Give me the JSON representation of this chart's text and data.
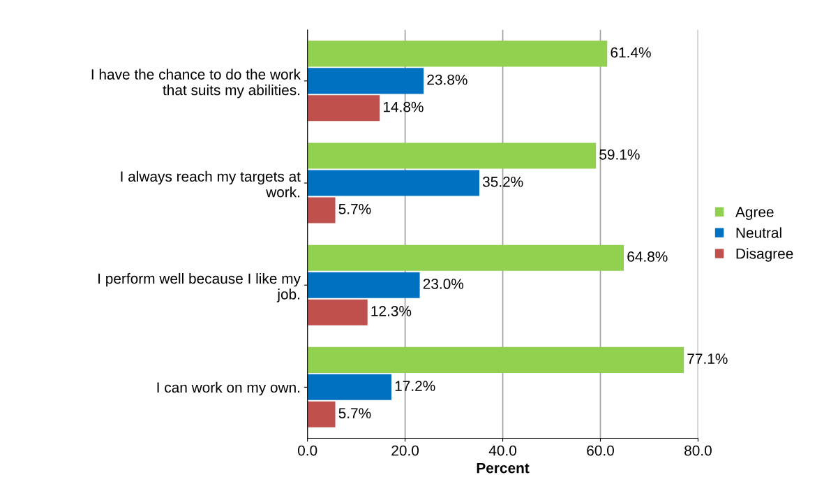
{
  "chart_data": {
    "type": "bar",
    "orientation": "horizontal",
    "xlabel": "Percent",
    "categories": [
      "I have the chance to do the work\nthat suits my abilities.",
      "I always reach my targets at\nwork.",
      "I perform well because I like my\njob.",
      "I can work on my own."
    ],
    "series": [
      {
        "name": "Agree",
        "color": "#92d050",
        "values": [
          61.4,
          59.1,
          64.8,
          77.1
        ],
        "value_labels": [
          "61.4%",
          "59.1%",
          "64.8%",
          "77.1%"
        ]
      },
      {
        "name": "Neutral",
        "color": "#0070c0",
        "values": [
          23.8,
          35.2,
          23.0,
          17.2
        ],
        "value_labels": [
          "23.8%",
          "35.2%",
          "23.0%",
          "17.2%"
        ]
      },
      {
        "name": "Disagree",
        "color": "#c0504d",
        "values": [
          14.8,
          5.7,
          12.3,
          5.7
        ],
        "value_labels": [
          "14.8%",
          "5.7%",
          "12.3%",
          "5.7%"
        ]
      }
    ],
    "xlim": [
      0,
      80
    ],
    "xticks": [
      {
        "value": 0,
        "label": "0.0"
      },
      {
        "value": 20,
        "label": "20.0"
      },
      {
        "value": 40,
        "label": "40.0"
      },
      {
        "value": 60,
        "label": "60.0"
      },
      {
        "value": 80,
        "label": "80.0"
      }
    ],
    "grid": "x",
    "legend": "right"
  }
}
